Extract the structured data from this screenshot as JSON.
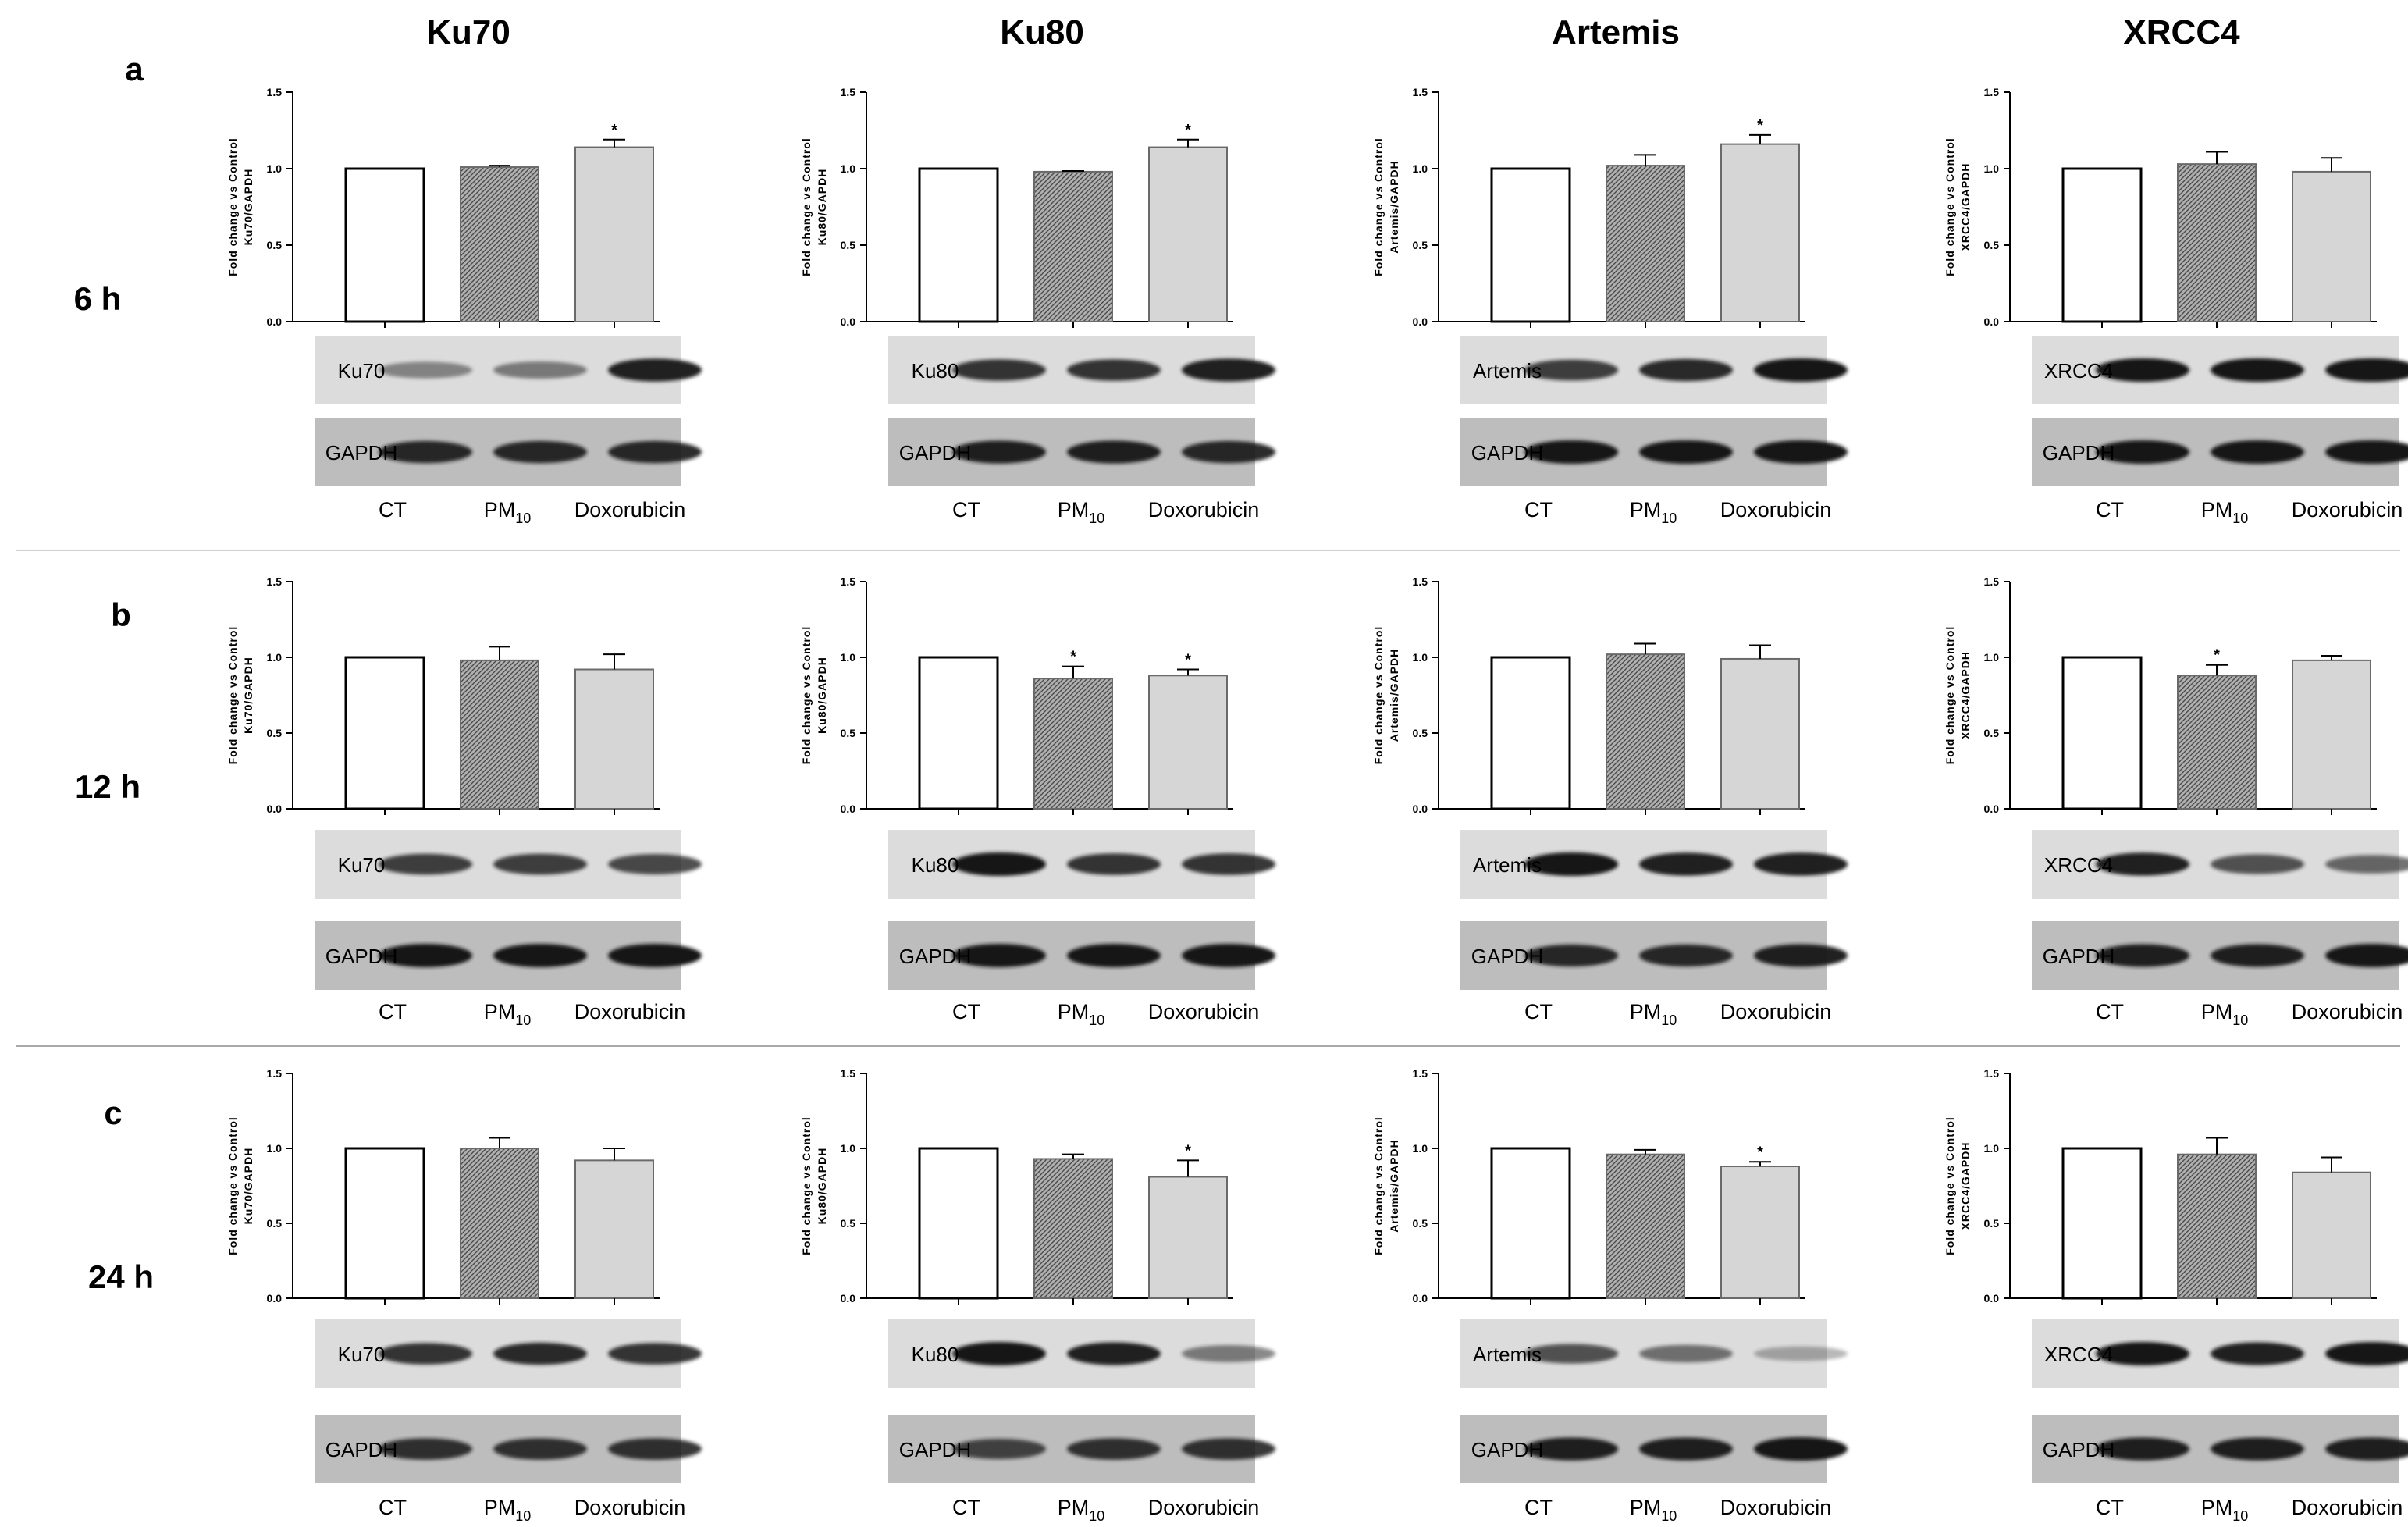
{
  "column_titles": [
    "Ku70",
    "Ku80",
    "Artemis",
    "XRCC4"
  ],
  "rows": [
    {
      "letter": "a",
      "time": "6 h"
    },
    {
      "letter": "b",
      "time": "12 h"
    },
    {
      "letter": "c",
      "time": "24 h"
    }
  ],
  "lane_labels": {
    "ct": "CT",
    "pm_base": "PM",
    "pm_sub": "10",
    "dox": "Doxorubicin"
  },
  "loading_control": "GAPDH",
  "colors": {
    "ct": "#ffffff",
    "pm10": "#8a8a8a",
    "dox": "#d6d6d6",
    "blot_bg": "#c7c7c7",
    "band": "#141414"
  },
  "chart_data": [
    {
      "type": "bar",
      "row": "a",
      "time": "6 h",
      "protein": "Ku70",
      "ylabel": "Fold change vs Control Ku70/GAPDH",
      "ylim": [
        0,
        1.5
      ],
      "yticks": [
        "0.0",
        "0.5",
        "1.0",
        "1.5"
      ],
      "categories": [
        "CT",
        "PM10",
        "Doxorubicin"
      ],
      "values": [
        1.0,
        1.01,
        1.14
      ],
      "errors": [
        0,
        0.01,
        0.05
      ],
      "significance": [
        "",
        "",
        "*"
      ]
    },
    {
      "type": "bar",
      "row": "a",
      "time": "6 h",
      "protein": "Ku80",
      "ylabel": "Fold change vs Control Ku80/GAPDH",
      "ylim": [
        0,
        1.5
      ],
      "yticks": [
        "0.0",
        "0.5",
        "1.0",
        "1.5"
      ],
      "categories": [
        "CT",
        "PM10",
        "Doxorubicin"
      ],
      "values": [
        1.0,
        0.98,
        1.14
      ],
      "errors": [
        0,
        0.005,
        0.05
      ],
      "significance": [
        "",
        "",
        "*"
      ]
    },
    {
      "type": "bar",
      "row": "a",
      "time": "6 h",
      "protein": "Artemis",
      "ylabel": "Fold change vs Control Artemis/GAPDH",
      "ylim": [
        0,
        1.5
      ],
      "yticks": [
        "0.0",
        "0.5",
        "1.0",
        "1.5"
      ],
      "categories": [
        "CT",
        "PM10",
        "Doxorubicin"
      ],
      "values": [
        1.0,
        1.02,
        1.16
      ],
      "errors": [
        0,
        0.07,
        0.06
      ],
      "significance": [
        "",
        "",
        "*"
      ]
    },
    {
      "type": "bar",
      "row": "a",
      "time": "6 h",
      "protein": "XRCC4",
      "ylabel": "Fold change vs Control XRCC4/GAPDH",
      "ylim": [
        0,
        1.5
      ],
      "yticks": [
        "0.0",
        "0.5",
        "1.0",
        "1.5"
      ],
      "categories": [
        "CT",
        "PM10",
        "Doxorubicin"
      ],
      "values": [
        1.0,
        1.03,
        0.98
      ],
      "errors": [
        0,
        0.08,
        0.09
      ],
      "significance": [
        "",
        "",
        ""
      ]
    },
    {
      "type": "bar",
      "row": "b",
      "time": "12 h",
      "protein": "Ku70",
      "ylabel": "Fold change vs Control Ku70/GAPDH",
      "ylim": [
        0,
        1.5
      ],
      "yticks": [
        "0.0",
        "0.5",
        "1.0",
        "1.5"
      ],
      "categories": [
        "CT",
        "PM10",
        "Doxorubicin"
      ],
      "values": [
        1.0,
        0.98,
        0.92
      ],
      "errors": [
        0,
        0.09,
        0.1
      ],
      "significance": [
        "",
        "",
        ""
      ]
    },
    {
      "type": "bar",
      "row": "b",
      "time": "12 h",
      "protein": "Ku80",
      "ylabel": "Fold change vs Control Ku80/GAPDH",
      "ylim": [
        0,
        1.5
      ],
      "yticks": [
        "0.0",
        "0.5",
        "1.0",
        "1.5"
      ],
      "categories": [
        "CT",
        "PM10",
        "Doxorubicin"
      ],
      "values": [
        1.0,
        0.86,
        0.88
      ],
      "errors": [
        0,
        0.08,
        0.04
      ],
      "significance": [
        "",
        "*",
        "*"
      ]
    },
    {
      "type": "bar",
      "row": "b",
      "time": "12 h",
      "protein": "Artemis",
      "ylabel": "Fold change vs Control Artemis/GAPDH",
      "ylim": [
        0,
        1.5
      ],
      "yticks": [
        "0.0",
        "0.5",
        "1.0",
        "1.5"
      ],
      "categories": [
        "CT",
        "PM10",
        "Doxorubicin"
      ],
      "values": [
        1.0,
        1.02,
        0.99
      ],
      "errors": [
        0,
        0.07,
        0.09
      ],
      "significance": [
        "",
        "",
        ""
      ]
    },
    {
      "type": "bar",
      "row": "b",
      "time": "12 h",
      "protein": "XRCC4",
      "ylabel": "Fold change vs Control XRCC4/GAPDH",
      "ylim": [
        0,
        1.5
      ],
      "yticks": [
        "0.0",
        "0.5",
        "1.0",
        "1.5"
      ],
      "categories": [
        "CT",
        "PM10",
        "Doxorubicin"
      ],
      "values": [
        1.0,
        0.88,
        0.98
      ],
      "errors": [
        0,
        0.07,
        0.03
      ],
      "significance": [
        "",
        "*",
        ""
      ]
    },
    {
      "type": "bar",
      "row": "c",
      "time": "24 h",
      "protein": "Ku70",
      "ylabel": "Fold change vs Control Ku70/GAPDH",
      "ylim": [
        0,
        1.5
      ],
      "yticks": [
        "0.0",
        "0.5",
        "1.0",
        "1.5"
      ],
      "categories": [
        "CT",
        "PM10",
        "Doxorubicin"
      ],
      "values": [
        1.0,
        1.0,
        0.92
      ],
      "errors": [
        0,
        0.07,
        0.08
      ],
      "significance": [
        "",
        "",
        ""
      ]
    },
    {
      "type": "bar",
      "row": "c",
      "time": "24 h",
      "protein": "Ku80",
      "ylabel": "Fold change vs Control Ku80/GAPDH",
      "ylim": [
        0,
        1.5
      ],
      "yticks": [
        "0.0",
        "0.5",
        "1.0",
        "1.5"
      ],
      "categories": [
        "CT",
        "PM10",
        "Doxorubicin"
      ],
      "values": [
        1.0,
        0.93,
        0.81
      ],
      "errors": [
        0,
        0.03,
        0.11
      ],
      "significance": [
        "",
        "",
        "*"
      ]
    },
    {
      "type": "bar",
      "row": "c",
      "time": "24 h",
      "protein": "Artemis",
      "ylabel": "Fold change vs Control Artemis/GAPDH",
      "ylim": [
        0,
        1.5
      ],
      "yticks": [
        "0.0",
        "0.5",
        "1.0",
        "1.5"
      ],
      "categories": [
        "CT",
        "PM10",
        "Doxorubicin"
      ],
      "values": [
        1.0,
        0.96,
        0.88
      ],
      "errors": [
        0,
        0.03,
        0.03
      ],
      "significance": [
        "",
        "",
        "*"
      ]
    },
    {
      "type": "bar",
      "row": "c",
      "time": "24 h",
      "protein": "XRCC4",
      "ylabel": "Fold change vs Control XRCC4/GAPDH",
      "ylim": [
        0,
        1.5
      ],
      "yticks": [
        "0.0",
        "0.5",
        "1.0",
        "1.5"
      ],
      "categories": [
        "CT",
        "PM10",
        "Doxorubicin"
      ],
      "values": [
        1.0,
        0.96,
        0.84
      ],
      "errors": [
        0,
        0.11,
        0.1
      ],
      "significance": [
        "",
        "",
        ""
      ]
    }
  ],
  "blots": [
    {
      "row": "a",
      "protein": "Ku70",
      "intensities": [
        0.45,
        0.5,
        0.95
      ],
      "gapdh": [
        0.9,
        0.9,
        0.9
      ]
    },
    {
      "row": "a",
      "protein": "Ku80",
      "intensities": [
        0.85,
        0.85,
        0.95
      ],
      "gapdh": [
        0.95,
        0.95,
        0.9
      ]
    },
    {
      "row": "a",
      "protein": "Artemis",
      "intensities": [
        0.8,
        0.9,
        1.0
      ],
      "gapdh": [
        1.0,
        1.0,
        1.0
      ]
    },
    {
      "row": "a",
      "protein": "XRCC4",
      "intensities": [
        1.0,
        1.0,
        1.0
      ],
      "gapdh": [
        1.0,
        1.0,
        1.0
      ]
    },
    {
      "row": "b",
      "protein": "Ku70",
      "intensities": [
        0.8,
        0.8,
        0.75
      ],
      "gapdh": [
        1.0,
        1.0,
        1.0
      ]
    },
    {
      "row": "b",
      "protein": "Ku80",
      "intensities": [
        1.0,
        0.85,
        0.85
      ],
      "gapdh": [
        1.0,
        1.0,
        1.0
      ]
    },
    {
      "row": "b",
      "protein": "Artemis",
      "intensities": [
        1.0,
        0.95,
        0.95
      ],
      "gapdh": [
        0.9,
        0.9,
        0.95
      ]
    },
    {
      "row": "b",
      "protein": "XRCC4",
      "intensities": [
        0.95,
        0.7,
        0.6
      ],
      "gapdh": [
        0.95,
        0.95,
        1.0
      ]
    },
    {
      "row": "c",
      "protein": "Ku70",
      "intensities": [
        0.85,
        0.9,
        0.85
      ],
      "gapdh": [
        0.85,
        0.85,
        0.85
      ]
    },
    {
      "row": "c",
      "protein": "Ku80",
      "intensities": [
        1.0,
        0.95,
        0.5
      ],
      "gapdh": [
        0.75,
        0.85,
        0.85
      ]
    },
    {
      "row": "c",
      "protein": "Artemis",
      "intensities": [
        0.7,
        0.55,
        0.3
      ],
      "gapdh": [
        0.95,
        0.95,
        1.0
      ]
    },
    {
      "row": "c",
      "protein": "XRCC4",
      "intensities": [
        1.0,
        0.95,
        1.0
      ],
      "gapdh": [
        0.95,
        0.95,
        0.95
      ]
    }
  ]
}
